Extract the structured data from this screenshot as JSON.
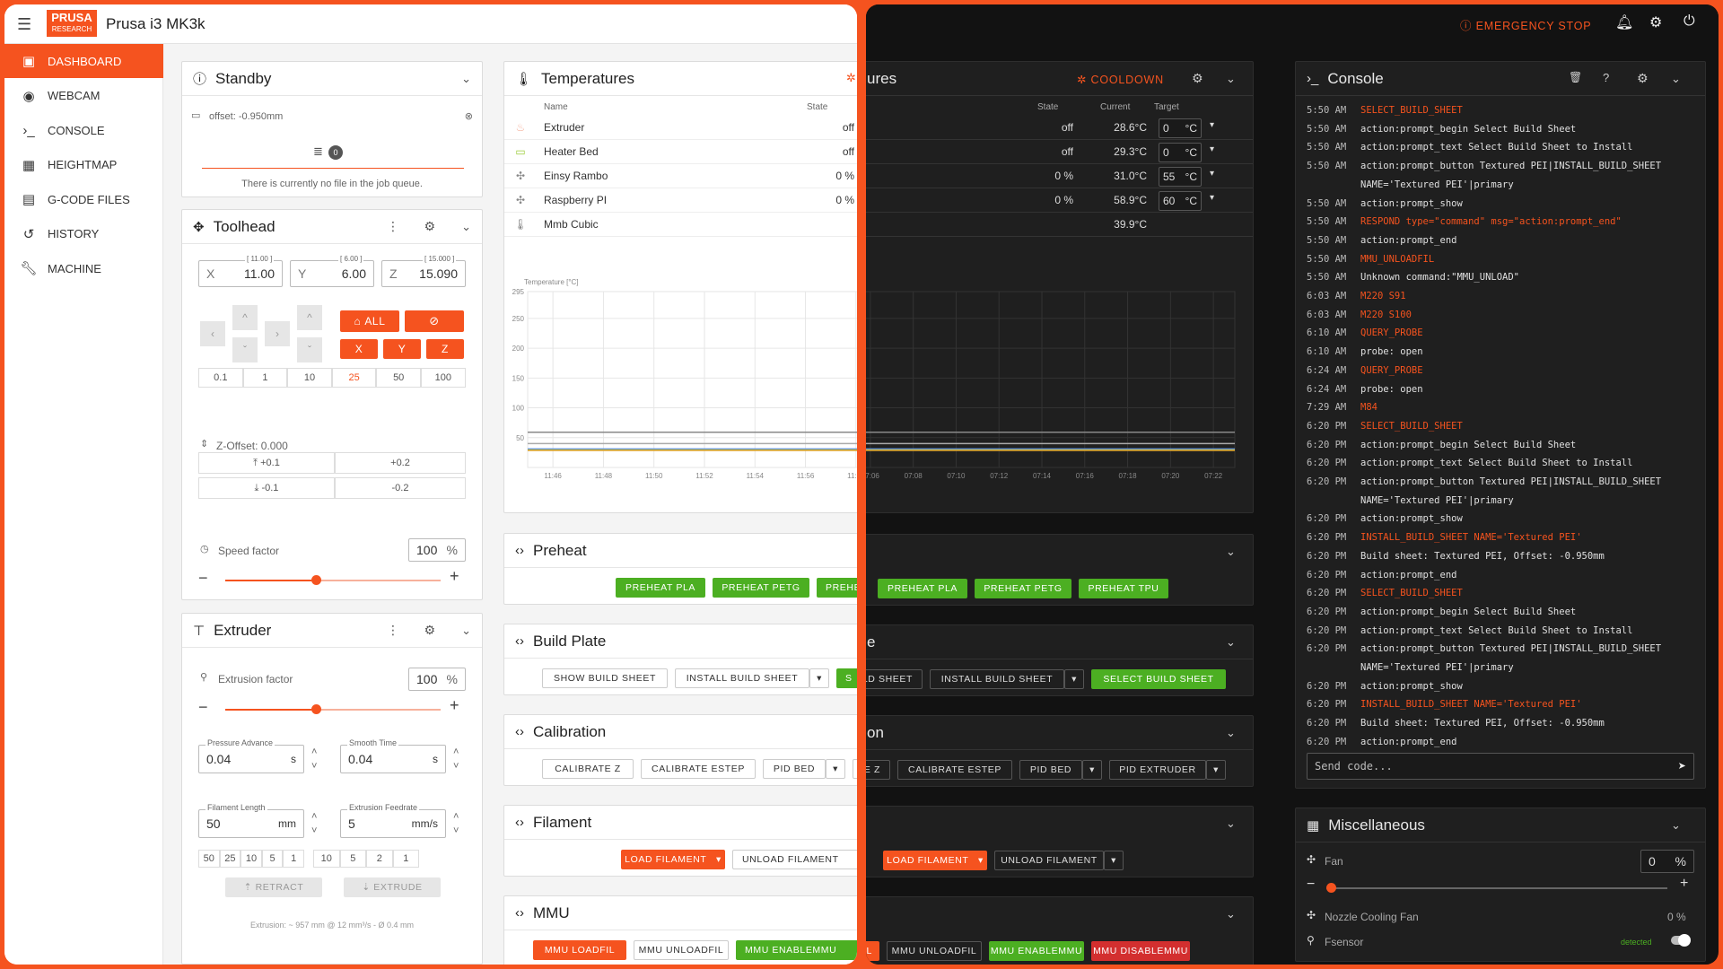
{
  "app": {
    "brand_top": "PRUSA",
    "brand_bottom": "RESEARCH",
    "printer_name": "Prusa i3 MK3k"
  },
  "nav": [
    {
      "label": "DASHBOARD",
      "icon": "dashboard-icon"
    },
    {
      "label": "WEBCAM",
      "icon": "webcam-icon"
    },
    {
      "label": "CONSOLE",
      "icon": "console-icon"
    },
    {
      "label": "HEIGHTMAP",
      "icon": "heightmap-icon"
    },
    {
      "label": "G-CODE FILES",
      "icon": "file-icon"
    },
    {
      "label": "HISTORY",
      "icon": "history-icon"
    },
    {
      "label": "MACHINE",
      "icon": "wrench-icon"
    }
  ],
  "topbar": {
    "emergency_stop": "EMERGENCY STOP"
  },
  "standby": {
    "title": "Standby",
    "offset": "offset: -0.950mm",
    "queue_count": "0",
    "queue_empty": "There is currently no file in the job queue."
  },
  "toolhead": {
    "title": "Toolhead",
    "x_label": "X",
    "x_value": "11.00",
    "x_max": "[ 11.00 ]",
    "y_label": "Y",
    "y_value": "6.00",
    "y_max": "[ 6.00 ]",
    "z_label": "Z",
    "z_value": "15.090",
    "z_max": "[ 15.000 ]",
    "home_all": "ALL",
    "home_x": "X",
    "home_y": "Y",
    "home_z": "Z",
    "steps": [
      "0.1",
      "1",
      "10",
      "25",
      "50",
      "100"
    ],
    "z_offset": "Z-Offset: 0.000",
    "z_up_small": "+0.1",
    "z_up_big": "+0.2",
    "z_down_small": "-0.1",
    "z_down_big": "-0.2",
    "speed_label": "Speed factor",
    "speed_value": "100",
    "speed_unit": "%"
  },
  "extruder": {
    "title": "Extruder",
    "factor_label": "Extrusion factor",
    "factor_value": "100",
    "factor_unit": "%",
    "pa_label": "Pressure Advance",
    "pa_value": "0.04",
    "pa_unit": "s",
    "st_label": "Smooth Time",
    "st_value": "0.04",
    "st_unit": "s",
    "fl_label": "Filament Length",
    "fl_value": "50",
    "fl_unit": "mm",
    "ef_label": "Extrusion Feedrate",
    "ef_value": "5",
    "ef_unit": "mm/s",
    "len_steps": [
      "50",
      "25",
      "10",
      "5",
      "1"
    ],
    "feed_steps": [
      "10",
      "5",
      "2",
      "1"
    ],
    "retract": "RETRACT",
    "extrude": "EXTRUDE",
    "footer": "Extrusion: ~ 957 mm @ 12 mm³/s - Ø 0.4 mm"
  },
  "temperatures": {
    "title": "Temperatures",
    "title_dark": "ures",
    "cooldown": "COOLDOWN",
    "col_name": "Name",
    "col_state": "State",
    "col_current": "Current",
    "col_target": "Target",
    "rows": [
      {
        "name": "Extruder",
        "state": "off",
        "current": "28.6°C",
        "target": "0",
        "unit": "°C"
      },
      {
        "name": "Heater Bed",
        "state": "off",
        "current": "29.3°C",
        "target": "0",
        "unit": "°C"
      },
      {
        "name": "Einsy Rambo",
        "state": "0 %",
        "current": "31.0°C",
        "target": "55",
        "unit": "°C"
      },
      {
        "name": "Raspberry PI",
        "state": "0 %",
        "current": "58.9°C",
        "target": "60",
        "unit": "°C"
      },
      {
        "name": "Mmb Cubic",
        "state": "",
        "current": "39.9°C",
        "target": "",
        "unit": ""
      }
    ]
  },
  "chart_data": {
    "type": "line",
    "ylabel": "Temperature [°C]",
    "yticks": [
      50,
      100,
      150,
      200,
      250,
      295
    ],
    "ylim": [
      0,
      295
    ],
    "x": [
      "11:46",
      "11:48",
      "11:50",
      "11:52",
      "11:54",
      "11:56",
      "11:58",
      "07:06",
      "07:08",
      "07:10",
      "07:12",
      "07:14",
      "07:16",
      "07:18",
      "07:20",
      "07:22"
    ],
    "series": [
      {
        "name": "Raspberry PI",
        "color": "#888888",
        "values": [
          59,
          59,
          59,
          59,
          59,
          59,
          59,
          59,
          59,
          59,
          59,
          59,
          59,
          59,
          59,
          59
        ]
      },
      {
        "name": "Mmb Cubic",
        "color": "#aaaaaa",
        "values": [
          40,
          40,
          40,
          40,
          40,
          40,
          40,
          40,
          40,
          40,
          40,
          40,
          40,
          40,
          40,
          40
        ]
      },
      {
        "name": "Einsy Rambo",
        "color": "#5b8def",
        "values": [
          31,
          31,
          31,
          31,
          31,
          31,
          31,
          31,
          31,
          31,
          31,
          31,
          31,
          31,
          31,
          31
        ]
      },
      {
        "name": "Heater Bed",
        "color": "#9ccc3a",
        "values": [
          29.3,
          29.3,
          29.3,
          29.3,
          29.3,
          29.3,
          29.3,
          29.3,
          29.3,
          29.3,
          29.3,
          29.3,
          29.3,
          29.3,
          29.3,
          29.3
        ]
      },
      {
        "name": "Extruder",
        "color": "#e0a030",
        "values": [
          28.6,
          28.6,
          28.6,
          28.6,
          28.6,
          28.6,
          28.6,
          28.6,
          28.6,
          28.6,
          28.6,
          28.6,
          28.6,
          28.6,
          28.6,
          28.6
        ]
      }
    ]
  },
  "preheat": {
    "title": "Preheat",
    "pla": "PREHEAT PLA",
    "petg": "PREHEAT PETG",
    "tpu": "PREHEAT TPU",
    "tpu_cut": "PREHE"
  },
  "build_plate": {
    "title": "Build Plate",
    "title_dark": "e",
    "show": "SHOW BUILD SHEET",
    "show_dark": "ILD SHEET",
    "install": "INSTALL BUILD SHEET",
    "select": "SELECT BUILD SHEET",
    "select_cut": "S"
  },
  "calibration": {
    "title": "Calibration",
    "title_dark": "on",
    "z": "CALIBRATE Z",
    "z_dark": "E Z",
    "estep": "CALIBRATE ESTEP",
    "pid_bed": "PID BED",
    "pid_extruder": "PID EXTRUDER"
  },
  "filament": {
    "title": "Filament",
    "load": "LOAD FILAMENT",
    "unload": "UNLOAD FILAMENT",
    "unload_cut": "UNLOAD FILAMENT"
  },
  "mmu": {
    "title": "MMU",
    "loadfil": "MMU LOADFIL",
    "loadfil_dark": "IL",
    "unloadfil": "MMU UNLOADFIL",
    "enable": "MMU ENABLEMMU",
    "disable": "MMU DISABLEMMU"
  },
  "console": {
    "title": "Console",
    "placeholder": "Send code...",
    "lines": [
      {
        "t": "5:50 AM",
        "m": "SELECT_BUILD_SHEET",
        "err": true
      },
      {
        "t": "5:50 AM",
        "m": "action:prompt_begin Select Build Sheet",
        "err": false
      },
      {
        "t": "5:50 AM",
        "m": "action:prompt_text Select Build Sheet to Install",
        "err": false
      },
      {
        "t": "5:50 AM",
        "m": "action:prompt_button Textured PEI|INSTALL_BUILD_SHEET",
        "err": false
      },
      {
        "t": "",
        "m": "NAME='Textured PEI'|primary",
        "err": false
      },
      {
        "t": "5:50 AM",
        "m": "action:prompt_show",
        "err": false
      },
      {
        "t": "5:50 AM",
        "m": "RESPOND type=\"command\" msg=\"action:prompt_end\"",
        "err": true
      },
      {
        "t": "5:50 AM",
        "m": "action:prompt_end",
        "err": false
      },
      {
        "t": "5:50 AM",
        "m": "MMU_UNLOADFIL",
        "err": true
      },
      {
        "t": "5:50 AM",
        "m": "Unknown command:\"MMU_UNLOAD\"",
        "err": false
      },
      {
        "t": "6:03 AM",
        "m": "M220 S91",
        "err": true
      },
      {
        "t": "6:03 AM",
        "m": "M220 S100",
        "err": true
      },
      {
        "t": "6:10 AM",
        "m": "QUERY_PROBE",
        "err": true
      },
      {
        "t": "6:10 AM",
        "m": "probe: open",
        "err": false
      },
      {
        "t": "6:24 AM",
        "m": "QUERY_PROBE",
        "err": true
      },
      {
        "t": "6:24 AM",
        "m": "probe: open",
        "err": false
      },
      {
        "t": "7:29 AM",
        "m": "M84",
        "err": true
      },
      {
        "t": "6:20 PM",
        "m": "SELECT_BUILD_SHEET",
        "err": true
      },
      {
        "t": "6:20 PM",
        "m": "action:prompt_begin Select Build Sheet",
        "err": false
      },
      {
        "t": "6:20 PM",
        "m": "action:prompt_text Select Build Sheet to Install",
        "err": false
      },
      {
        "t": "6:20 PM",
        "m": "action:prompt_button Textured PEI|INSTALL_BUILD_SHEET",
        "err": false
      },
      {
        "t": "",
        "m": "NAME='Textured PEI'|primary",
        "err": false
      },
      {
        "t": "6:20 PM",
        "m": "action:prompt_show",
        "err": false
      },
      {
        "t": "6:20 PM",
        "m": "INSTALL_BUILD_SHEET NAME='Textured PEI'",
        "err": true
      },
      {
        "t": "6:20 PM",
        "m": "Build sheet: Textured PEI, Offset: -0.950mm",
        "err": false
      },
      {
        "t": "6:20 PM",
        "m": "action:prompt_end",
        "err": false
      },
      {
        "t": "6:20 PM",
        "m": "SELECT_BUILD_SHEET",
        "err": true
      },
      {
        "t": "6:20 PM",
        "m": "action:prompt_begin Select Build Sheet",
        "err": false
      },
      {
        "t": "6:20 PM",
        "m": "action:prompt_text Select Build Sheet to Install",
        "err": false
      },
      {
        "t": "6:20 PM",
        "m": "action:prompt_button Textured PEI|INSTALL_BUILD_SHEET",
        "err": false
      },
      {
        "t": "",
        "m": "NAME='Textured PEI'|primary",
        "err": false
      },
      {
        "t": "6:20 PM",
        "m": "action:prompt_show",
        "err": false
      },
      {
        "t": "6:20 PM",
        "m": "INSTALL_BUILD_SHEET NAME='Textured PEI'",
        "err": true
      },
      {
        "t": "6:20 PM",
        "m": "Build sheet: Textured PEI, Offset: -0.950mm",
        "err": false
      },
      {
        "t": "6:20 PM",
        "m": "action:prompt_end",
        "err": false
      }
    ]
  },
  "misc": {
    "title": "Miscellaneous",
    "fan_label": "Fan",
    "fan_value": "0",
    "fan_unit": "%",
    "nozzle_fan_label": "Nozzle Cooling Fan",
    "nozzle_fan_value": "0 %",
    "fsensor_label": "Fsensor",
    "fsensor_status": "detected"
  },
  "colors": {
    "accent": "#f5531f",
    "green": "#4caf22",
    "red": "#d32f2f"
  }
}
